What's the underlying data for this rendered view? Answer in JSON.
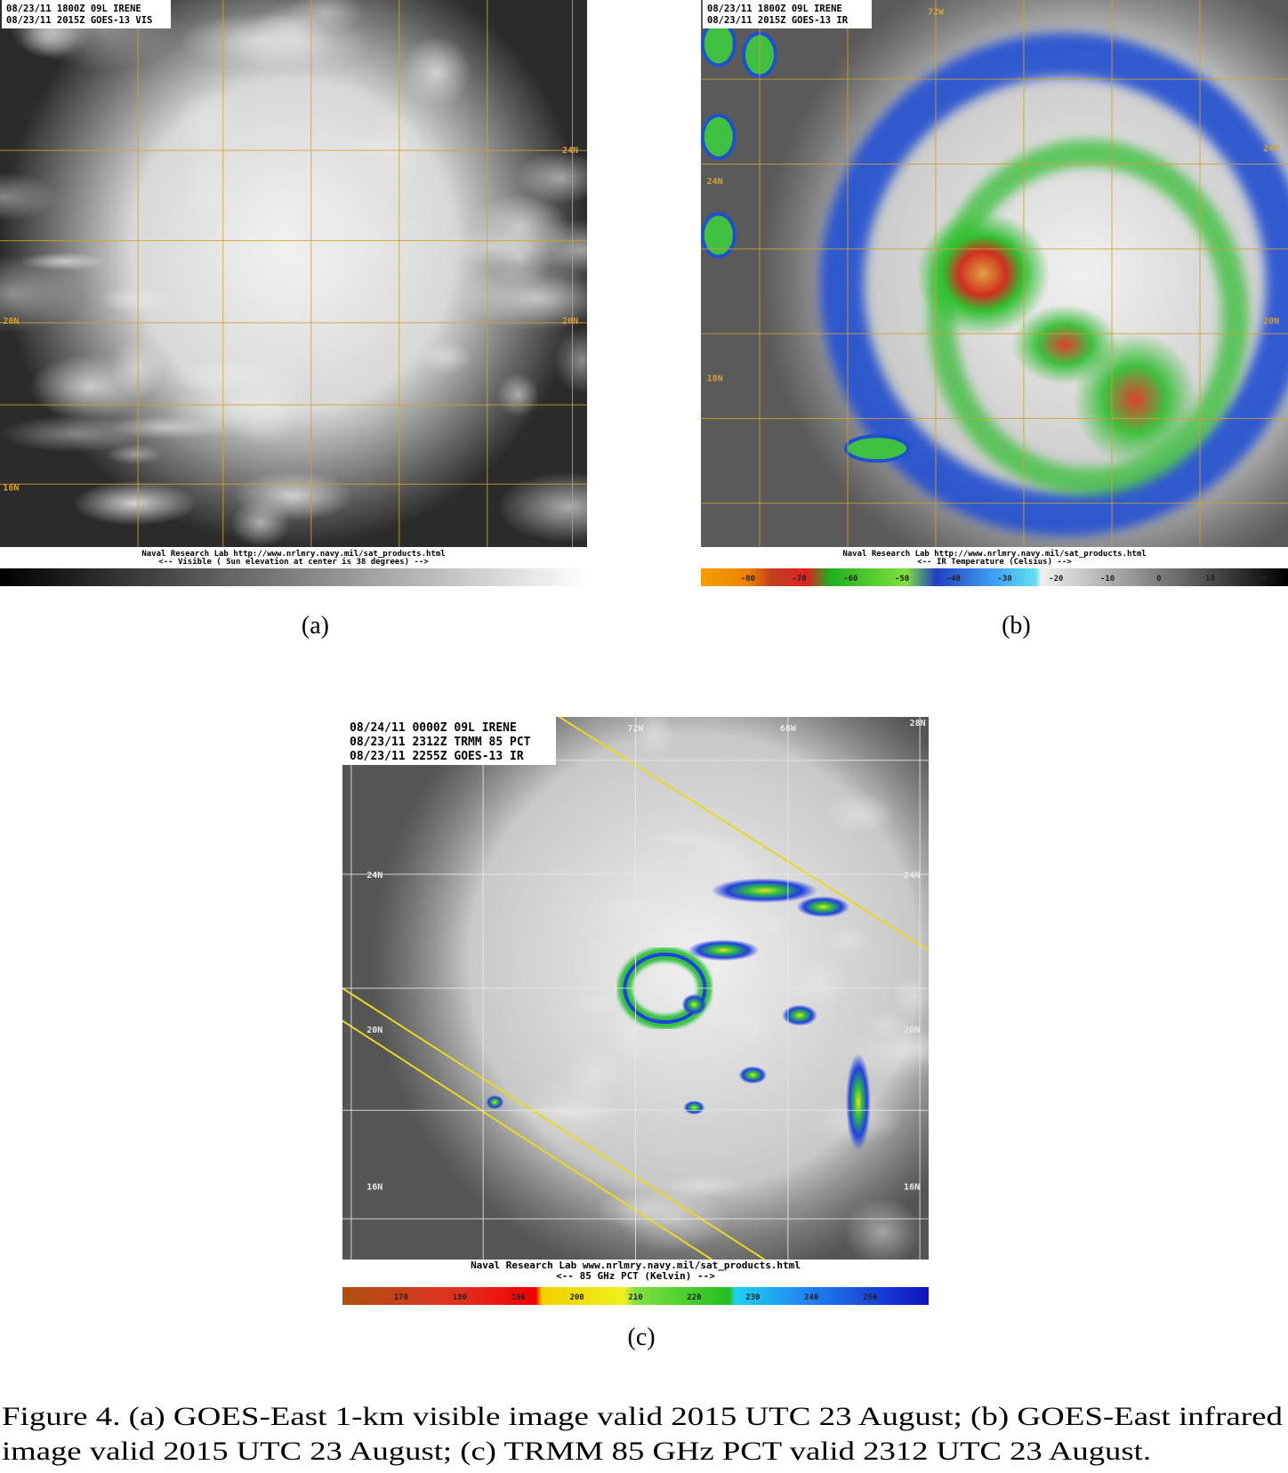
{
  "figure": {
    "panels": [
      {
        "label": "(a)",
        "header": [
          "08/23/11 1800Z  09L IRENE",
          "08/23/11 2015Z  GOES-13 VIS"
        ],
        "grid_labels": [
          "24N",
          "20N",
          "20N",
          "16N"
        ],
        "footer": [
          "Naval Research Lab http://www.nrlmry.navy.mil/sat_products.html",
          "<--   Visible ( Sun elevation at center is 38 degrees)  -->"
        ],
        "colorbar_labels": []
      },
      {
        "label": "(b)",
        "header": [
          "08/23/11 1800Z  09L IRENE",
          "08/23/11 2015Z  GOES-13 IR"
        ],
        "grid_labels": [
          "72W",
          "24N",
          "24N",
          "20N",
          "18N"
        ],
        "footer": [
          "Naval Research Lab http://www.nrlmry.navy.mil/sat_products.html",
          "<--   IR Temperature (Celsius)  -->"
        ],
        "colorbar_labels": [
          "-80",
          "-70",
          "-60",
          "-50",
          "-40",
          "-30",
          "-20",
          "-10",
          "0",
          "10",
          "20"
        ]
      },
      {
        "label": "(c)",
        "header": [
          "08/24/11 0000Z 09L IRENE",
          "08/23/11 2312Z TRMM 85 PCT",
          "08/23/11 2255Z GOES-13 IR"
        ],
        "grid_labels": [
          "72W",
          "68W",
          "28N",
          "24N",
          "24N",
          "20N",
          "20N",
          "16N",
          "16N"
        ],
        "footer": [
          "Naval Research Lab  www.nrlmry.navy.mil/sat_products.html",
          "<--   85 GHz PCT (Kelvin)   -->"
        ],
        "colorbar_labels": [
          "170",
          "180",
          "190",
          "200",
          "210",
          "220",
          "230",
          "240",
          "250"
        ]
      }
    ],
    "caption": [
      "Figure 4.  (a) GOES-East 1-km visible image valid 2015 UTC 23 August; (b) GOES-East infrared",
      "image valid 2015 UTC 23 August; (c) TRMM 85 GHz PCT valid 2312 UTC 23 August."
    ]
  }
}
